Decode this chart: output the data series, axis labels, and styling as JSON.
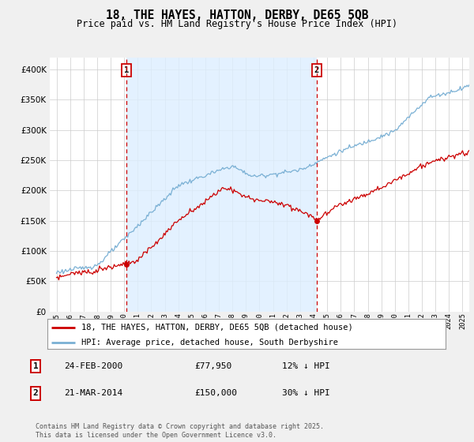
{
  "title": "18, THE HAYES, HATTON, DERBY, DE65 5QB",
  "subtitle": "Price paid vs. HM Land Registry's House Price Index (HPI)",
  "legend_line1": "18, THE HAYES, HATTON, DERBY, DE65 5QB (detached house)",
  "legend_line2": "HPI: Average price, detached house, South Derbyshire",
  "annotation1_label": "1",
  "annotation1_date": "24-FEB-2000",
  "annotation1_price": "£77,950",
  "annotation1_hpi": "12% ↓ HPI",
  "annotation2_label": "2",
  "annotation2_date": "21-MAR-2014",
  "annotation2_price": "£150,000",
  "annotation2_hpi": "30% ↓ HPI",
  "footnote": "Contains HM Land Registry data © Crown copyright and database right 2025.\nThis data is licensed under the Open Government Licence v3.0.",
  "vline1_x": 2000.15,
  "vline2_x": 2014.22,
  "point1_x": 2000.15,
  "point1_y": 77950,
  "point2_x": 2014.22,
  "point2_y": 150000,
  "ylim": [
    0,
    420000
  ],
  "xlim": [
    1994.5,
    2025.5
  ],
  "background_color": "#f0f0f0",
  "plot_bg_color": "#ffffff",
  "line_color_red": "#cc0000",
  "line_color_blue": "#7ab0d4",
  "shade_color": "#ddeeff",
  "vline_color": "#cc0000",
  "point_color": "#cc0000",
  "grid_color": "#cccccc"
}
